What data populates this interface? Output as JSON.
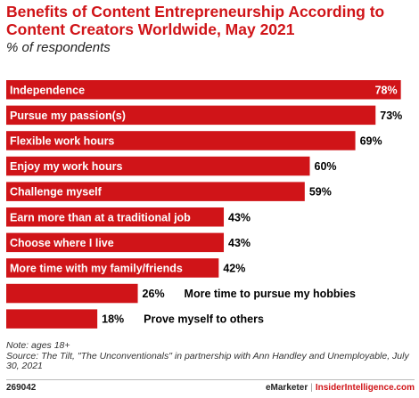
{
  "chart_data": {
    "type": "bar",
    "orientation": "horizontal",
    "title": "Benefits of Content Entrepreneurship According to Content Creators Worldwide, May 2021",
    "subtitle": "% of respondents",
    "categories": [
      "Independence",
      "Pursue my passion(s)",
      "Flexible work hours",
      "Enjoy my work hours",
      "Challenge myself",
      "Earn more than at a traditional job",
      "Choose where I live",
      "More time with my family/friends",
      "More time to pursue my hobbies",
      "Prove myself to others"
    ],
    "values": [
      78,
      73,
      69,
      60,
      59,
      43,
      43,
      42,
      26,
      18
    ],
    "value_labels": [
      "78%",
      "73%",
      "69%",
      "60%",
      "59%",
      "43%",
      "43%",
      "42%",
      "26%",
      "18%"
    ],
    "xlim": [
      0,
      80
    ],
    "bar_color": "#d01418",
    "grid": false,
    "legend": "none"
  },
  "notes": {
    "note": "Note: ages 18+",
    "source": "Source: The Tilt, \"The Unconventionals\" in partnership with Ann Handley and Unemployable, July 30, 2021"
  },
  "footer": {
    "id": "269042",
    "brand": "eMarketer",
    "separator": "|",
    "site": "InsiderIntelligence.com"
  },
  "colors": {
    "accent": "#d01418",
    "divider": "#999999"
  }
}
